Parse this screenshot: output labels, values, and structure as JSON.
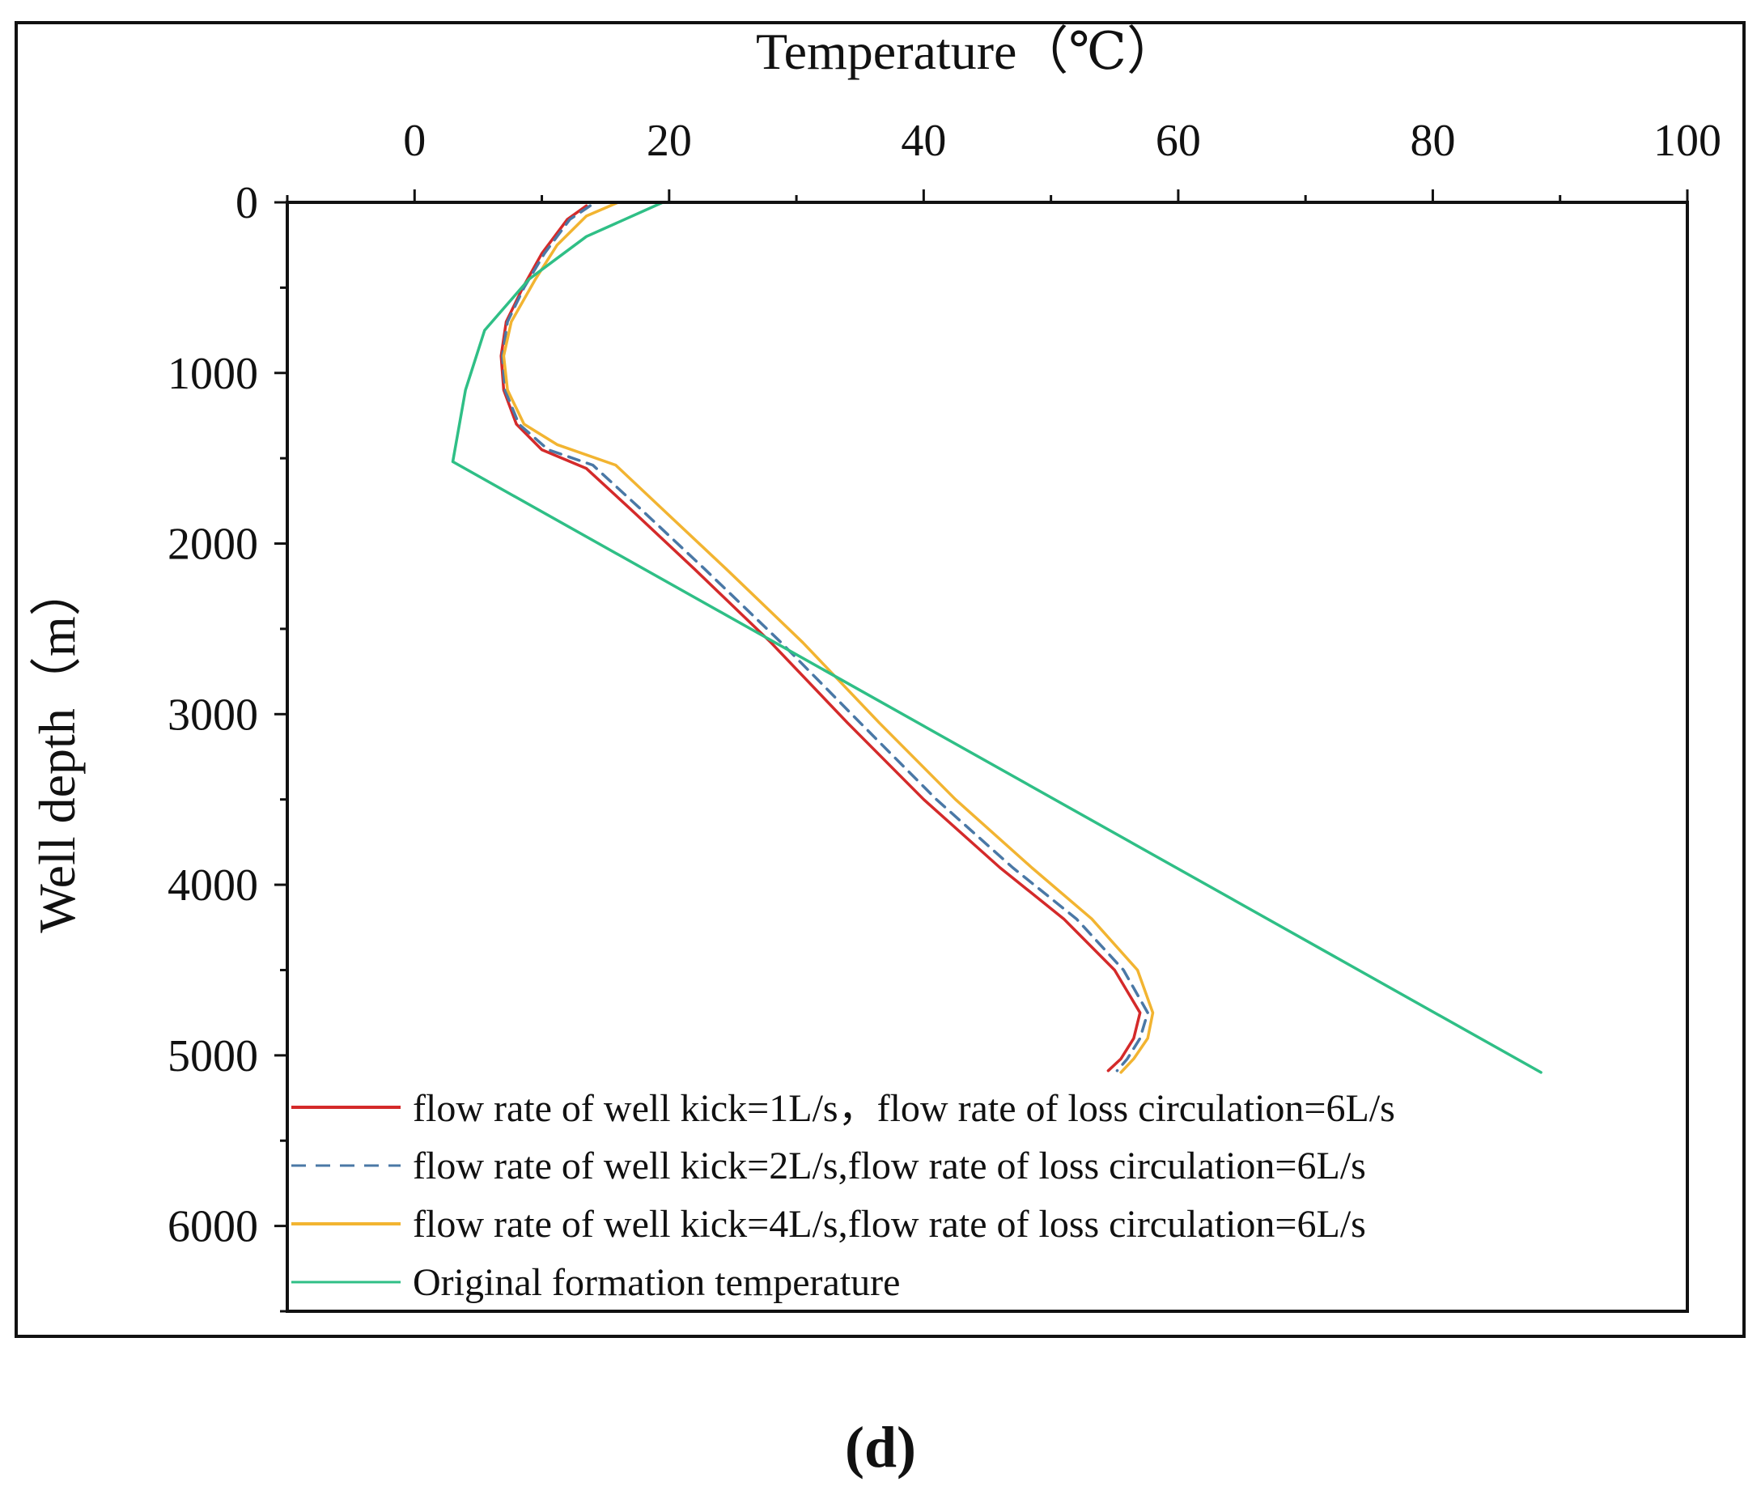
{
  "chart_data": {
    "type": "line",
    "title": "",
    "xlabel": "Temperature（℃）",
    "ylabel": "Well depth（m）",
    "xlim": [
      -10,
      100
    ],
    "ylim": [
      6500,
      0
    ],
    "xticks": [
      0,
      20,
      40,
      60,
      80,
      100
    ],
    "yticks": [
      0,
      1000,
      2000,
      3000,
      4000,
      5000,
      6000
    ],
    "grid": false,
    "legend_position": "bottom-left",
    "panel_label": "(d)",
    "colors": {
      "red": "#d42a2a",
      "blue": "#4a78a6",
      "orange": "#f2b431",
      "green": "#2fbf86"
    },
    "series": [
      {
        "name": "flow rate of well kick=1L/s，flow rate of loss circulation=6L/s",
        "color": "#d42a2a",
        "dash": "solid",
        "x": [
          13.5,
          12.0,
          10.0,
          8.5,
          7.2,
          6.8,
          7.0,
          8.0,
          10.0,
          13.5,
          17,
          22,
          28,
          34,
          40,
          46,
          51,
          55,
          57.0,
          56.5,
          55.5,
          54.5
        ],
        "y": [
          20,
          100,
          300,
          500,
          700,
          900,
          1100,
          1300,
          1450,
          1560,
          1800,
          2150,
          2580,
          3050,
          3500,
          3900,
          4200,
          4500,
          4750,
          4900,
          5020,
          5090
        ]
      },
      {
        "name": "flow rate of well kick=2L/s,flow rate of loss circulation=6L/s",
        "color": "#4a78a6",
        "dash": "dashed",
        "x": [
          13.8,
          12.2,
          10.2,
          8.6,
          7.3,
          6.9,
          7.1,
          8.2,
          10.5,
          14.0,
          17.8,
          22.8,
          28.8,
          35,
          41,
          47,
          52,
          55.7,
          57.6,
          57.0,
          56.0,
          55.2
        ],
        "y": [
          20,
          100,
          300,
          500,
          700,
          900,
          1100,
          1300,
          1450,
          1540,
          1800,
          2150,
          2580,
          3050,
          3500,
          3900,
          4200,
          4500,
          4750,
          4900,
          5020,
          5090
        ]
      },
      {
        "name": "flow rate of well kick=4L/s,flow rate of loss circulation=6L/s",
        "color": "#f2b431",
        "dash": "solid",
        "x": [
          16.0,
          13.5,
          11.2,
          9.5,
          7.6,
          7.0,
          7.3,
          8.6,
          11.2,
          15.8,
          19.5,
          24.5,
          30.5,
          36.5,
          42.5,
          48.5,
          53.2,
          56.8,
          58.0,
          57.6,
          56.5,
          55.5
        ],
        "y": [
          0,
          80,
          250,
          450,
          700,
          900,
          1100,
          1300,
          1420,
          1540,
          1800,
          2150,
          2580,
          3050,
          3500,
          3900,
          4200,
          4500,
          4750,
          4900,
          5020,
          5100
        ]
      },
      {
        "name": "Original formation temperature",
        "color": "#2fbf86",
        "dash": "solid",
        "x": [
          19.5,
          13.5,
          9.0,
          5.5,
          4.0,
          3.0,
          88.5
        ],
        "y": [
          0,
          200,
          450,
          750,
          1100,
          1520,
          5100
        ]
      }
    ]
  }
}
